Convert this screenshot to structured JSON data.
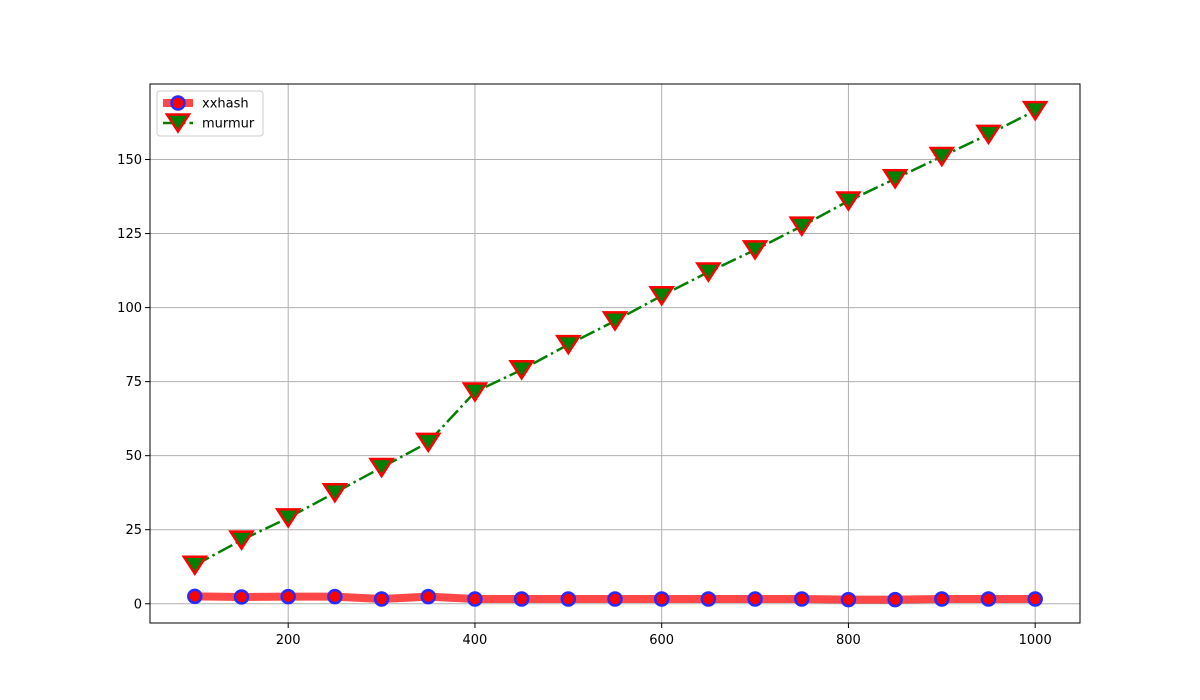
{
  "chart_data": {
    "type": "line",
    "title": "",
    "xlabel": "",
    "ylabel": "",
    "x": [
      100,
      150,
      200,
      250,
      300,
      350,
      400,
      450,
      500,
      550,
      600,
      650,
      700,
      750,
      800,
      850,
      900,
      950,
      1000
    ],
    "xlim": [
      52,
      1048
    ],
    "ylim": [
      -6.5,
      175.5
    ],
    "xticks": [
      "200",
      "400",
      "600",
      "800",
      "1000"
    ],
    "xtick_values": [
      200,
      400,
      600,
      800,
      1000
    ],
    "yticks": [
      "0",
      "25",
      "50",
      "75",
      "100",
      "125",
      "150"
    ],
    "ytick_values": [
      0,
      25,
      50,
      75,
      100,
      125,
      150
    ],
    "grid": true,
    "legend_position": "top-left",
    "series": [
      {
        "name": "xxhash",
        "values": [
          2.5,
          2.3,
          2.4,
          2.4,
          1.6,
          2.4,
          1.6,
          1.6,
          1.6,
          1.6,
          1.6,
          1.6,
          1.6,
          1.6,
          1.4,
          1.4,
          1.6,
          1.6,
          1.6
        ],
        "line_color": "#ff0000",
        "marker": "circle",
        "marker_fill": "#ff0000",
        "marker_edge": "#2a2aff",
        "line_style": "solid"
      },
      {
        "name": "murmur",
        "values": [
          13,
          21.5,
          29,
          37.5,
          46,
          54.5,
          71.5,
          79,
          87.5,
          95.5,
          104,
          112,
          119.5,
          127.5,
          136,
          143.5,
          151,
          158.5,
          166.5
        ],
        "line_color": "#008000",
        "marker": "triangle-down",
        "marker_fill": "#008000",
        "marker_edge": "#ff0000",
        "line_style": "dashdot"
      }
    ]
  }
}
